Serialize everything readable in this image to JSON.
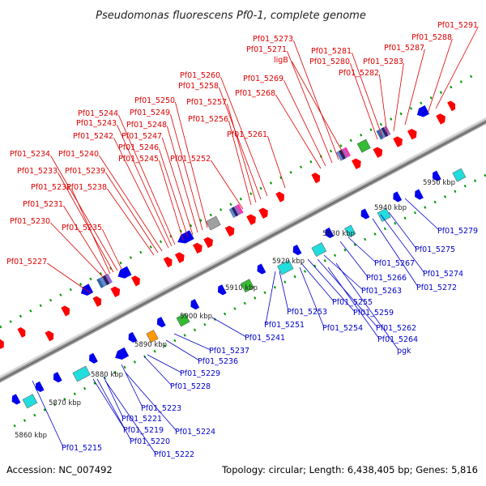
{
  "title": "Pseudomonas fluorescens Pf0-1, complete genome",
  "footer": {
    "accession": "Accession: NC_007492",
    "summary": "Topology: circular; Length: 6,438,405 bp; Genes: 5,816"
  },
  "colors": {
    "forward_label": "#dd0000",
    "reverse_label": "#0000cc",
    "forward_gene": "#ff0000",
    "reverse_gene": "#0000ee",
    "backbone": "#999999",
    "tick": "#009900"
  },
  "scale": [
    "5860 kbp",
    "5870 kbp",
    "5880 kbp",
    "5890 kbp",
    "5900 kbp",
    "5910 kbp",
    "5920 kbp",
    "5930 kbp",
    "5940 kbp",
    "5950 kbp"
  ],
  "forward_labels": [
    "Pf01_5227",
    "Pf01_5230",
    "Pf01_5231",
    "Pf01_5232",
    "Pf01_5233",
    "Pf01_5234",
    "Pf01_5235",
    "Pf01_5238",
    "Pf01_5239",
    "Pf01_5240",
    "Pf01_5242",
    "Pf01_5243",
    "Pf01_5244",
    "Pf01_5245",
    "Pf01_5246",
    "Pf01_5247",
    "Pf01_5248",
    "Pf01_5249",
    "Pf01_5250",
    "Pf01_5252",
    "Pf01_5256",
    "Pf01_5257",
    "Pf01_5258",
    "Pf01_5260",
    "Pf01_5261",
    "Pf01_5268",
    "Pf01_5269",
    "Pf01_5271",
    "Pf01_5273",
    "ligB",
    "Pf01_5280",
    "Pf01_5281",
    "Pf01_5282",
    "Pf01_5283",
    "Pf01_5287",
    "Pf01_5288",
    "Pf01_5291"
  ],
  "reverse_labels": [
    "Pf01_5215",
    "Pf01_5219",
    "Pf01_5220",
    "Pf01_5221",
    "Pf01_5222",
    "Pf01_5223",
    "Pf01_5224",
    "Pf01_5228",
    "Pf01_5229",
    "Pf01_5236",
    "Pf01_5237",
    "Pf01_5241",
    "Pf01_5251",
    "Pf01_5253",
    "Pf01_5254",
    "Pf01_5255",
    "Pf01_5259",
    "Pf01_5262",
    "Pf01_5263",
    "Pf01_5264",
    "pgk",
    "Pf01_5266",
    "Pf01_5267",
    "Pf01_5272",
    "Pf01_5274",
    "Pf01_5275",
    "Pf01_5279"
  ]
}
